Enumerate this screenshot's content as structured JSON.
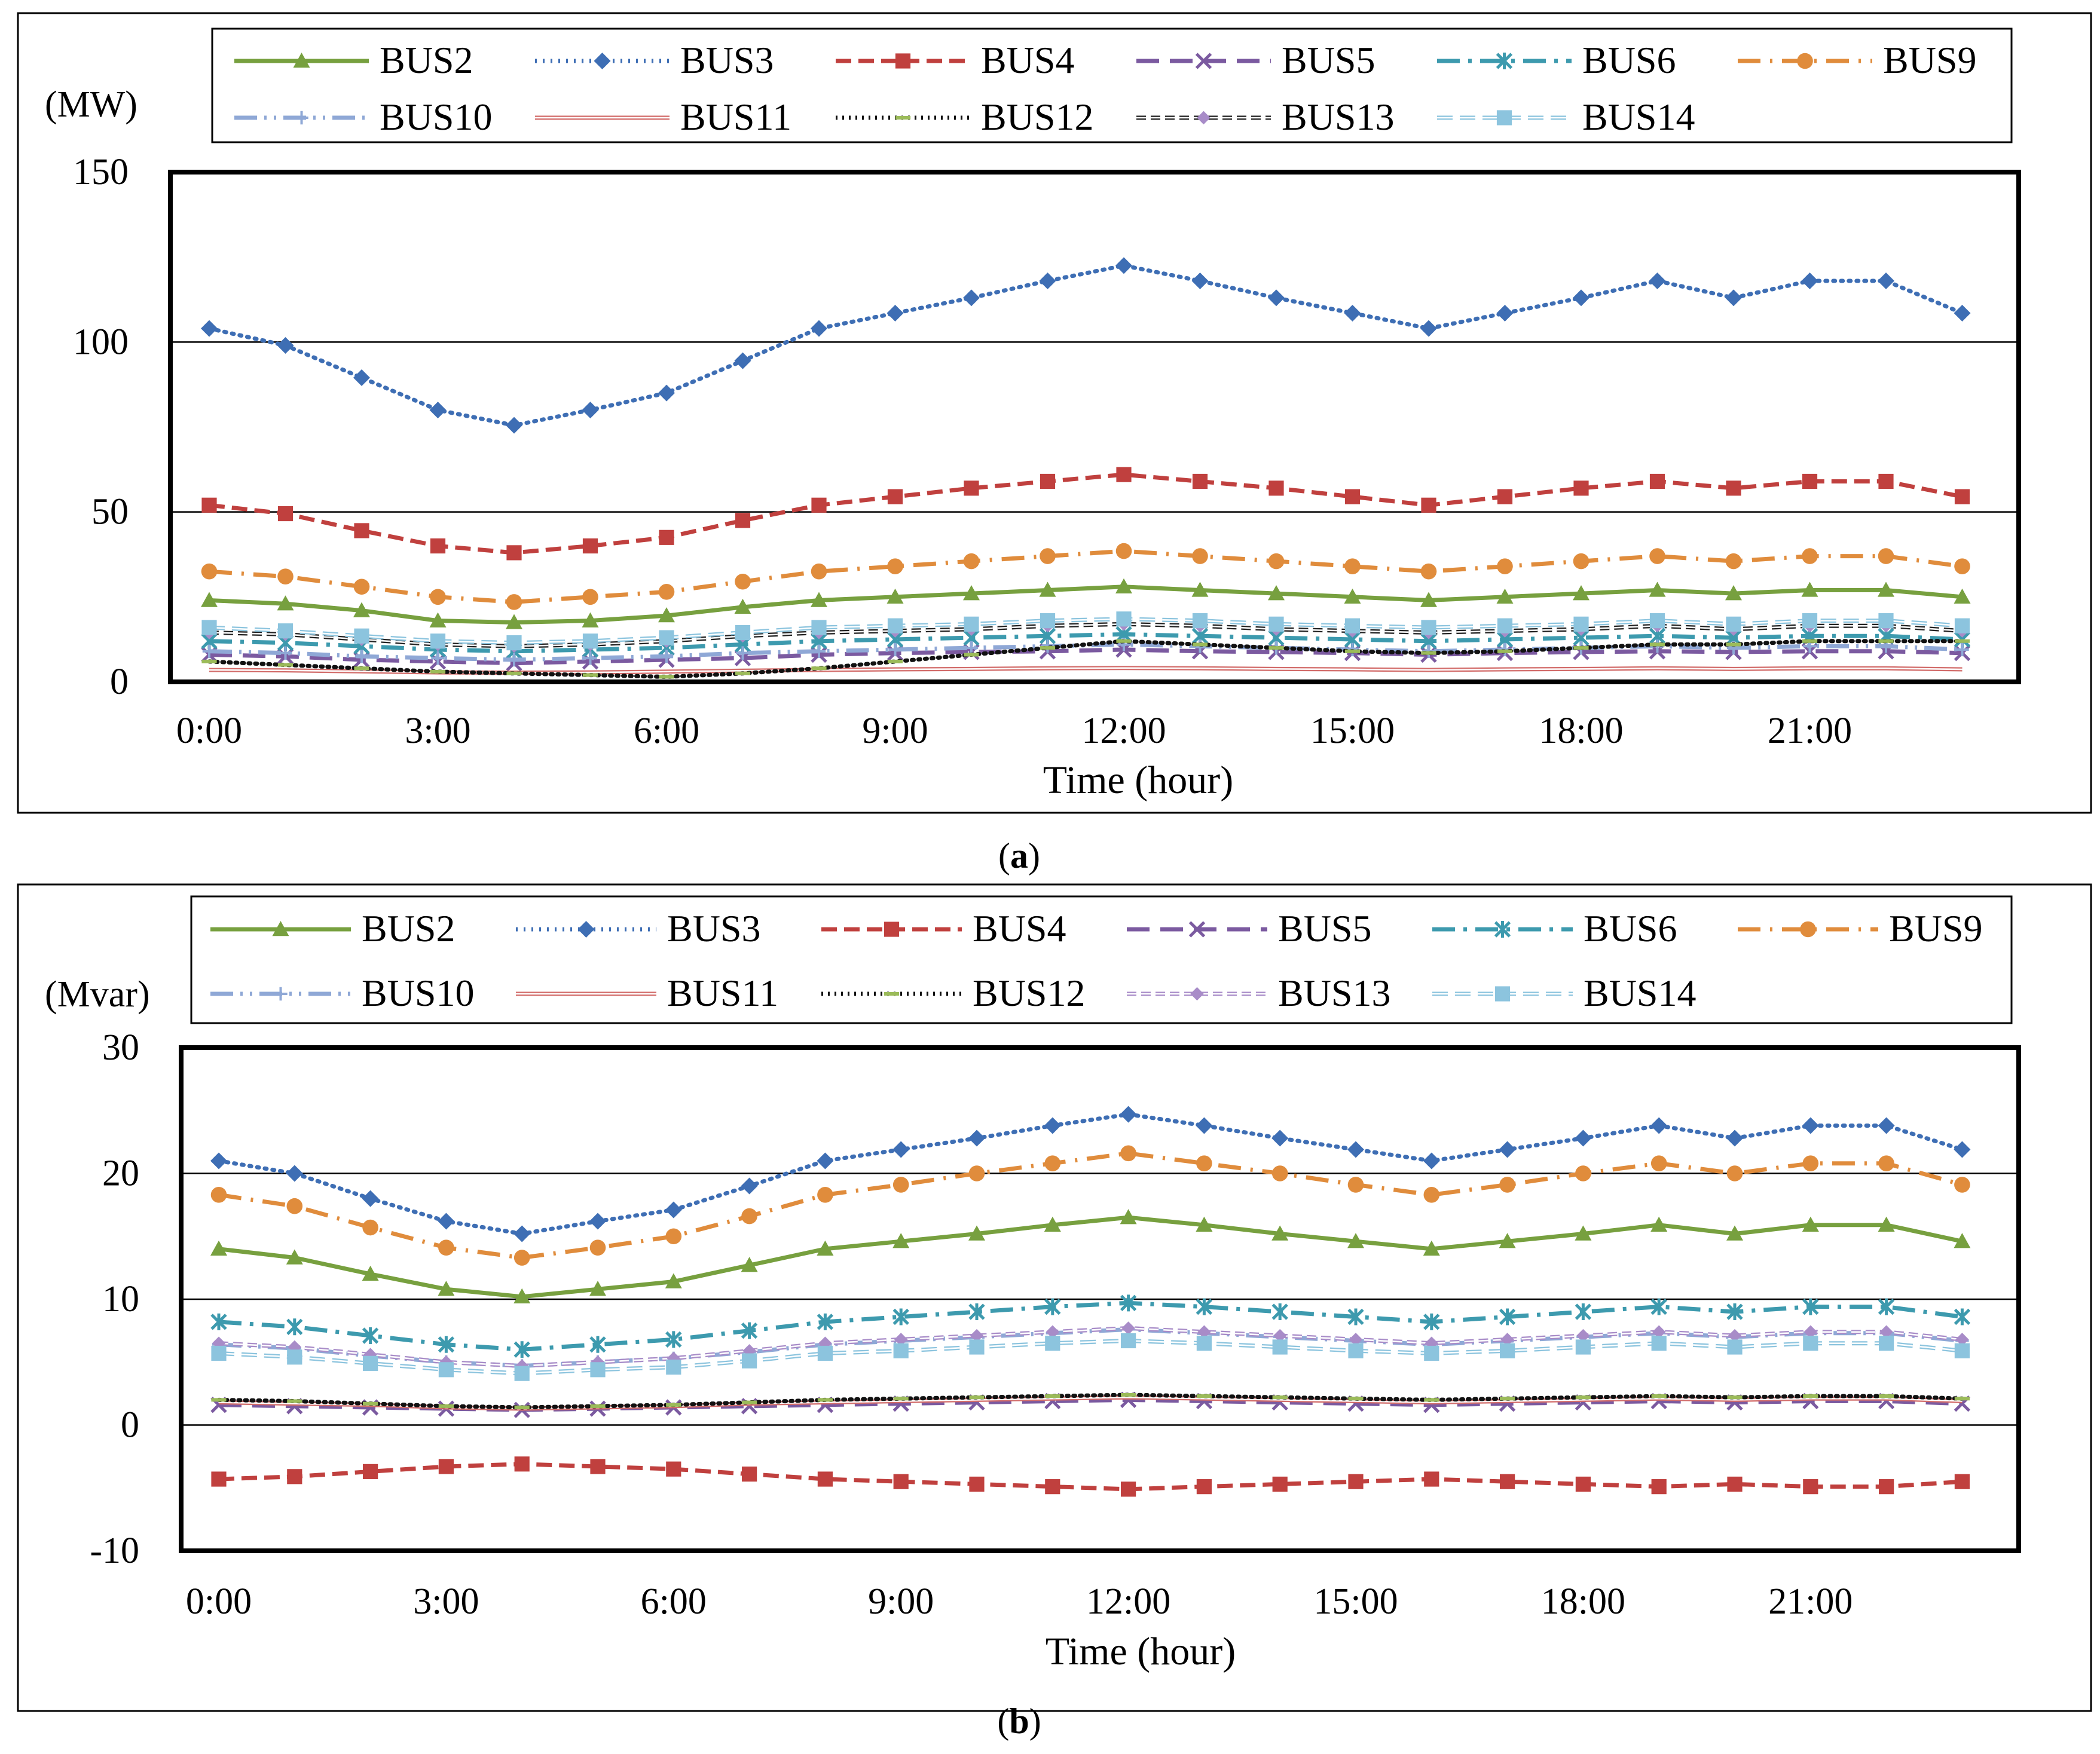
{
  "chart_data": [
    {
      "panel": "a",
      "type": "line",
      "caption": "(a)",
      "caption_letter": "a",
      "unit_label": "(MW)",
      "xlabel": "Time (hour)",
      "ylabel": "",
      "ylim": [
        0,
        150
      ],
      "yticks": [
        "0",
        "50",
        "100",
        "150"
      ],
      "xtick_labels": [
        "0:00",
        "3:00",
        "6:00",
        "9:00",
        "12:00",
        "15:00",
        "18:00",
        "21:00"
      ],
      "x": [
        0,
        1,
        2,
        3,
        4,
        5,
        6,
        7,
        8,
        9,
        10,
        11,
        12,
        13,
        14,
        15,
        16,
        17,
        18,
        19,
        20,
        21,
        22,
        23
      ],
      "grid": true,
      "legend_position": "top",
      "series": [
        {
          "name": "BUS2",
          "color": "#77A03F",
          "dash": "",
          "marker": "triangle",
          "values": [
            24,
            23,
            21,
            18,
            17.5,
            18,
            19.5,
            22,
            24,
            25,
            26,
            27,
            28,
            27,
            26,
            25,
            24,
            25,
            26,
            27,
            26,
            27,
            27,
            25
          ]
        },
        {
          "name": "BUS3",
          "color": "#3E6EB4",
          "dash": "3,10",
          "marker": "diamond",
          "values": [
            104,
            99,
            89.5,
            80,
            75.5,
            80,
            85,
            94.5,
            104,
            108.5,
            113,
            118,
            122.5,
            118,
            113,
            108.5,
            104,
            108.5,
            113,
            118,
            113,
            118,
            118,
            108.5
          ]
        },
        {
          "name": "BUS4",
          "color": "#C0403E",
          "dash": "26,12",
          "marker": "square",
          "values": [
            52,
            49.5,
            44.5,
            40,
            38,
            40,
            42.5,
            47.5,
            52,
            54.5,
            57,
            59,
            61,
            59,
            57,
            54.5,
            52,
            54.5,
            57,
            59,
            57,
            59,
            59,
            54.5
          ]
        },
        {
          "name": "BUS5",
          "color": "#7B5AA0",
          "dash": "38,18",
          "marker": "x",
          "values": [
            8,
            7.5,
            6.5,
            6,
            5.5,
            6,
            6.5,
            7,
            8,
            8.5,
            8.8,
            9,
            9.5,
            9,
            8.8,
            8.5,
            8,
            8.5,
            8.8,
            9,
            8.8,
            9,
            9,
            8.5
          ]
        },
        {
          "name": "BUS6",
          "color": "#3D9AAE",
          "dash": "38,14,6,14",
          "marker": "star",
          "values": [
            12,
            11.5,
            10.5,
            9.5,
            9,
            9.5,
            10,
            11,
            12,
            12.5,
            13,
            13.5,
            14,
            13.5,
            13,
            12.5,
            12,
            12.5,
            13,
            13.5,
            13,
            13.5,
            13.5,
            12.5
          ]
        },
        {
          "name": "BUS9",
          "color": "#E08C3C",
          "dash": "38,16,4,16",
          "marker": "circle",
          "values": [
            32.5,
            31,
            28,
            25,
            23.5,
            25,
            26.5,
            29.5,
            32.5,
            34,
            35.5,
            37,
            38.5,
            37,
            35.5,
            34,
            32.5,
            34,
            35.5,
            37,
            35.5,
            37,
            37,
            34
          ]
        },
        {
          "name": "BUS10",
          "color": "#8FA8D6",
          "dash": "38,12,4,12,4,12",
          "marker": "plus",
          "values": [
            9,
            8.5,
            7.5,
            7,
            6.5,
            7,
            7.5,
            8.5,
            9,
            9.5,
            10,
            10.5,
            11,
            10.5,
            10,
            9.5,
            9,
            9.5,
            10,
            10.5,
            10,
            10.5,
            10.5,
            9.5
          ]
        },
        {
          "name": "BUS11",
          "color": "#D26C6A",
          "dash": "",
          "marker": "none",
          "values": [
            3.5,
            3.4,
            3.1,
            2.8,
            2.7,
            2.8,
            3,
            3.3,
            3.5,
            3.7,
            3.8,
            4,
            4.1,
            4,
            3.8,
            3.7,
            3.5,
            3.7,
            3.8,
            4,
            3.8,
            4,
            4,
            3.7
          ]
        },
        {
          "name": "BUS12",
          "color": "#111111",
          "dash": "3,8",
          "marker": "dash",
          "values": [
            6,
            5,
            4,
            3,
            2.5,
            2,
            1.5,
            2.5,
            4,
            6,
            8,
            10,
            12,
            11,
            10,
            9,
            8.5,
            9,
            10,
            11,
            11,
            12,
            12,
            12
          ]
        },
        {
          "name": "BUS13",
          "color": "#222222",
          "dash": "16,8",
          "marker": "smalldiamond",
          "values": [
            14.5,
            14,
            12.5,
            11,
            10.5,
            11,
            12,
            13.5,
            14.5,
            15,
            15.5,
            16.5,
            17,
            16.5,
            15.5,
            15,
            14.5,
            15,
            15.5,
            16.5,
            15.5,
            16.5,
            16.5,
            15
          ]
        },
        {
          "name": "BUS14",
          "color": "#8CC4DE",
          "dash": "26,12",
          "marker": "square",
          "values": [
            16,
            15,
            13.5,
            12,
            11.5,
            12,
            13,
            14.5,
            16,
            16.5,
            17,
            18,
            18.5,
            18,
            17,
            16.5,
            16,
            16.5,
            17,
            18,
            17,
            18,
            18,
            16.5
          ]
        }
      ]
    },
    {
      "panel": "b",
      "type": "line",
      "caption": "(b)",
      "caption_letter": "b",
      "unit_label": "(Mvar)",
      "xlabel": "Time (hour)",
      "ylabel": "",
      "ylim": [
        -10,
        30
      ],
      "yticks": [
        "-10",
        "0",
        "10",
        "20",
        "30"
      ],
      "xtick_labels": [
        "0:00",
        "3:00",
        "6:00",
        "9:00",
        "12:00",
        "15:00",
        "18:00",
        "21:00"
      ],
      "x": [
        0,
        1,
        2,
        3,
        4,
        5,
        6,
        7,
        8,
        9,
        10,
        11,
        12,
        13,
        14,
        15,
        16,
        17,
        18,
        19,
        20,
        21,
        22,
        23
      ],
      "grid": true,
      "legend_position": "top",
      "series": [
        {
          "name": "BUS2",
          "color": "#77A03F",
          "dash": "",
          "marker": "triangle",
          "values": [
            14,
            13.3,
            12,
            10.8,
            10.2,
            10.8,
            11.4,
            12.7,
            14,
            14.6,
            15.2,
            15.9,
            16.5,
            15.9,
            15.2,
            14.6,
            14,
            14.6,
            15.2,
            15.9,
            15.2,
            15.9,
            15.9,
            14.6
          ]
        },
        {
          "name": "BUS3",
          "color": "#3E6EB4",
          "dash": "3,10",
          "marker": "diamond",
          "values": [
            21,
            20,
            18,
            16.2,
            15.2,
            16.2,
            17.1,
            19,
            21,
            21.9,
            22.8,
            23.8,
            24.7,
            23.8,
            22.8,
            21.9,
            21,
            21.9,
            22.8,
            23.8,
            22.8,
            23.8,
            23.8,
            21.9
          ]
        },
        {
          "name": "BUS4",
          "color": "#C0403E",
          "dash": "26,12",
          "marker": "square",
          "values": [
            -4.3,
            -4.1,
            -3.7,
            -3.3,
            -3.1,
            -3.3,
            -3.5,
            -3.9,
            -4.3,
            -4.5,
            -4.7,
            -4.9,
            -5.1,
            -4.9,
            -4.7,
            -4.5,
            -4.3,
            -4.5,
            -4.7,
            -4.9,
            -4.7,
            -4.9,
            -4.9,
            -4.5
          ]
        },
        {
          "name": "BUS5",
          "color": "#7B5AA0",
          "dash": "38,18",
          "marker": "x",
          "values": [
            1.6,
            1.5,
            1.4,
            1.3,
            1.2,
            1.3,
            1.4,
            1.5,
            1.6,
            1.7,
            1.8,
            1.9,
            2,
            1.9,
            1.8,
            1.7,
            1.6,
            1.7,
            1.8,
            1.9,
            1.8,
            1.9,
            1.9,
            1.7
          ]
        },
        {
          "name": "BUS6",
          "color": "#3D9AAE",
          "dash": "38,14,6,14",
          "marker": "star",
          "values": [
            8.2,
            7.8,
            7.1,
            6.4,
            6,
            6.4,
            6.8,
            7.5,
            8.2,
            8.6,
            9,
            9.4,
            9.7,
            9.4,
            9,
            8.6,
            8.2,
            8.6,
            9,
            9.4,
            9,
            9.4,
            9.4,
            8.6
          ]
        },
        {
          "name": "BUS9",
          "color": "#E08C3C",
          "dash": "38,16,4,16",
          "marker": "circle",
          "values": [
            18.3,
            17.4,
            15.7,
            14.1,
            13.3,
            14.1,
            15,
            16.6,
            18.3,
            19.1,
            20,
            20.8,
            21.6,
            20.8,
            20,
            19.1,
            18.3,
            19.1,
            20,
            20.8,
            20,
            20.8,
            20.8,
            19.1
          ]
        },
        {
          "name": "BUS10",
          "color": "#8FA8D6",
          "dash": "38,12,4,12,4,12",
          "marker": "plus",
          "values": [
            6.4,
            6.1,
            5.5,
            5,
            4.7,
            5,
            5.3,
            5.8,
            6.4,
            6.7,
            7,
            7.3,
            7.6,
            7.3,
            7,
            6.7,
            6.4,
            6.7,
            7,
            7.3,
            7,
            7.3,
            7.3,
            6.7
          ]
        },
        {
          "name": "BUS11",
          "color": "#D26C6A",
          "dash": "",
          "marker": "none",
          "values": [
            1.8,
            1.7,
            1.6,
            1.4,
            1.3,
            1.4,
            1.5,
            1.7,
            1.8,
            1.9,
            2,
            2.1,
            2.2,
            2.1,
            2,
            1.9,
            1.8,
            1.9,
            2,
            2.1,
            2,
            2.1,
            2.1,
            1.9
          ]
        },
        {
          "name": "BUS12",
          "color": "#111111",
          "dash": "3,8",
          "marker": "dash",
          "values": [
            2,
            1.9,
            1.7,
            1.5,
            1.4,
            1.5,
            1.6,
            1.8,
            2,
            2.1,
            2.2,
            2.3,
            2.4,
            2.3,
            2.2,
            2.1,
            2,
            2.1,
            2.2,
            2.3,
            2.2,
            2.3,
            2.3,
            2.1
          ]
        },
        {
          "name": "BUS13",
          "color": "#A88CC8",
          "dash": "16,8",
          "marker": "smalldiamond",
          "values": [
            6.5,
            6.2,
            5.6,
            5,
            4.7,
            5,
            5.3,
            5.9,
            6.5,
            6.8,
            7.1,
            7.4,
            7.7,
            7.4,
            7.1,
            6.8,
            6.5,
            6.8,
            7.1,
            7.4,
            7.1,
            7.4,
            7.4,
            6.8
          ]
        },
        {
          "name": "BUS14",
          "color": "#8CC4DE",
          "dash": "26,12",
          "marker": "square",
          "values": [
            5.7,
            5.4,
            4.9,
            4.4,
            4.1,
            4.4,
            4.6,
            5.1,
            5.7,
            5.9,
            6.2,
            6.5,
            6.7,
            6.5,
            6.2,
            5.9,
            5.7,
            5.9,
            6.2,
            6.5,
            6.2,
            6.5,
            6.5,
            5.9
          ]
        }
      ]
    }
  ]
}
